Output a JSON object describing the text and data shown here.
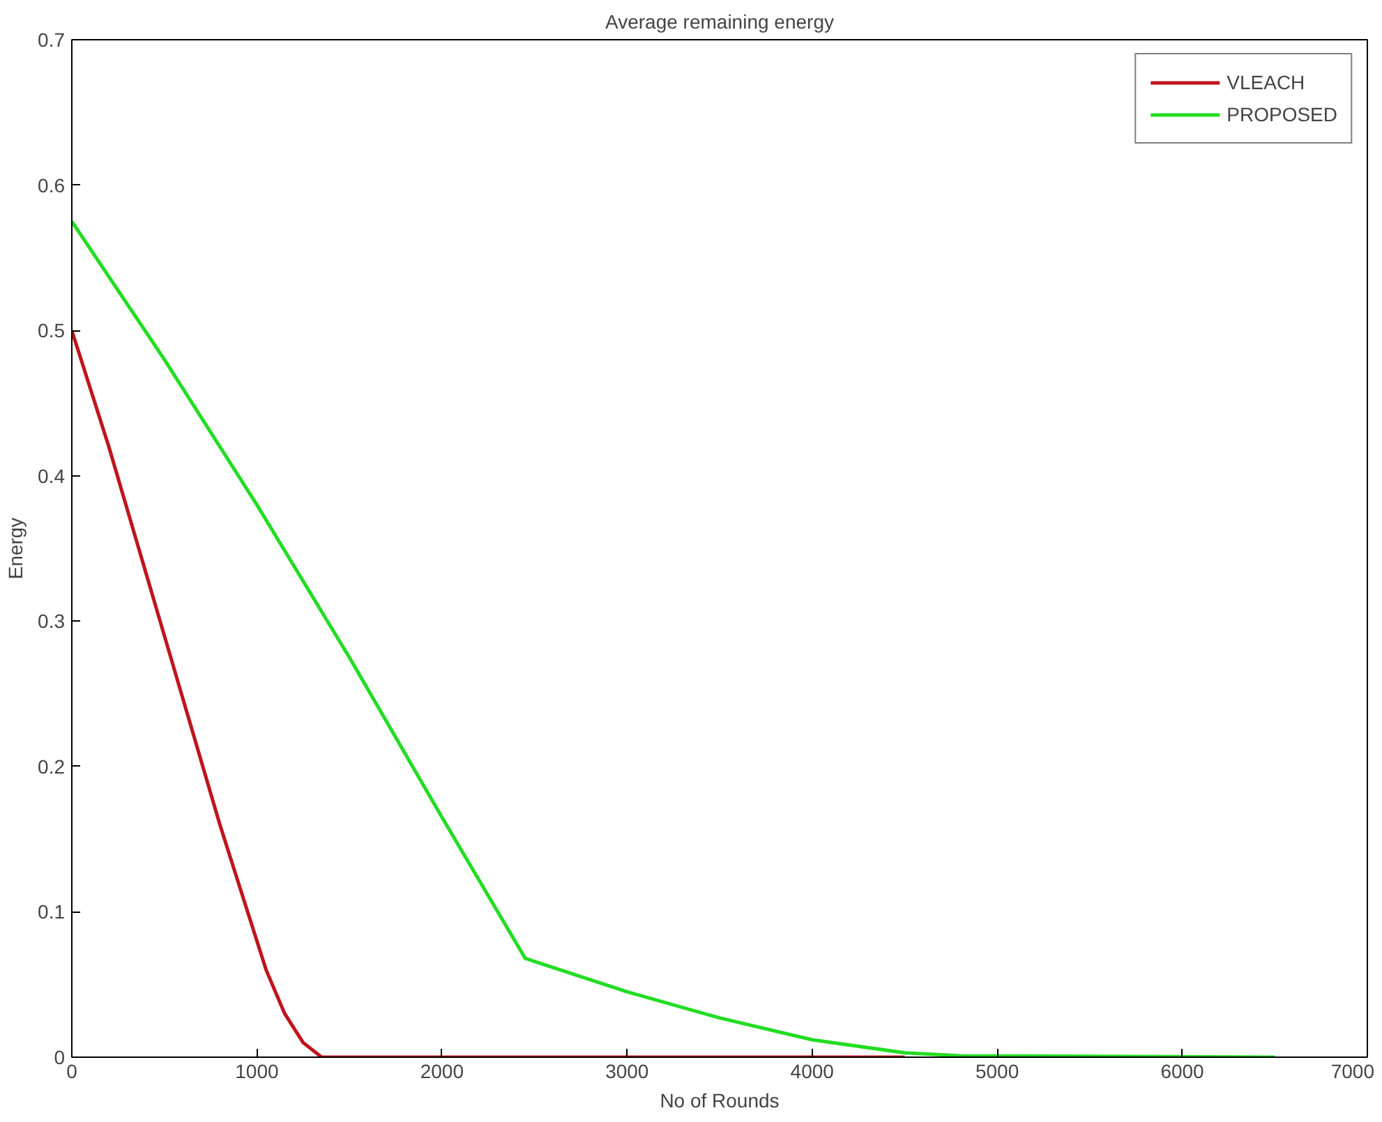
{
  "chart_data": {
    "type": "line",
    "title": "Average remaining energy",
    "xlabel": "No of Rounds",
    "ylabel": "Energy",
    "xlim": [
      0,
      7000
    ],
    "ylim": [
      0,
      0.7
    ],
    "xticks": [
      0,
      1000,
      2000,
      3000,
      4000,
      5000,
      6000,
      7000
    ],
    "yticks": [
      0,
      0.1,
      0.2,
      0.3,
      0.4,
      0.5,
      0.6,
      0.7
    ],
    "grid": false,
    "legend": "top right",
    "line_style": "solid",
    "series": [
      {
        "name": "VLEACH",
        "color": "#c0141c",
        "x": [
          0,
          200,
          500,
          800,
          950,
          1050,
          1150,
          1250,
          1350,
          4500
        ],
        "values": [
          0.5,
          0.42,
          0.29,
          0.16,
          0.1,
          0.06,
          0.03,
          0.01,
          0,
          0
        ]
      },
      {
        "name": "PROPOSED",
        "color": "#22dd22",
        "x": [
          0,
          500,
          1000,
          1500,
          2000,
          2450,
          3000,
          3500,
          4000,
          4500,
          4800,
          6500
        ],
        "values": [
          0.575,
          0.48,
          0.38,
          0.275,
          0.165,
          0.068,
          0.045,
          0.027,
          0.012,
          0.003,
          0.001,
          0
        ]
      }
    ]
  }
}
